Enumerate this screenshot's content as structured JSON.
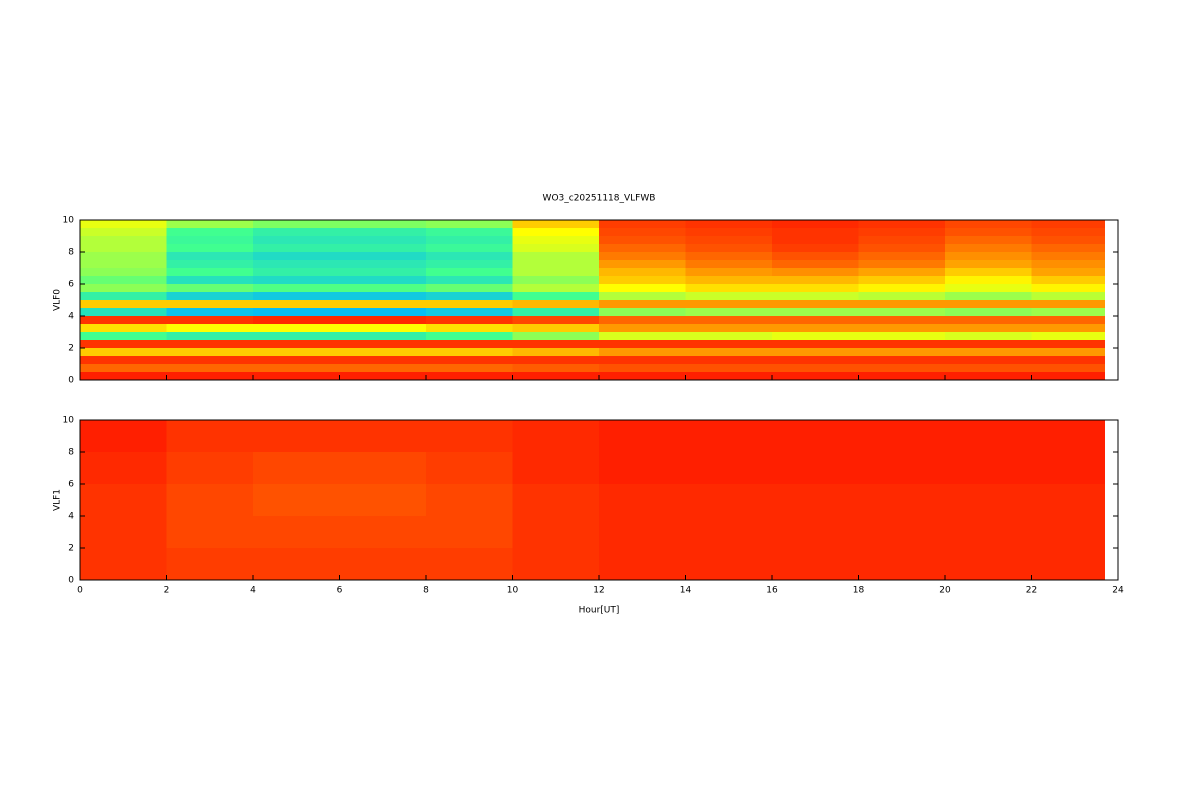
{
  "chart_data": [
    {
      "type": "heatmap",
      "title": "WO3_c20251118_VLFWB",
      "ylabel": "VLF0",
      "x": [
        0,
        2,
        4,
        6,
        8,
        10,
        12,
        14,
        16,
        18,
        20,
        22,
        23.7
      ],
      "y": [
        0,
        0.5,
        1,
        1.5,
        2,
        2.5,
        3,
        3.5,
        4,
        4.5,
        5,
        5.5,
        6,
        6.5,
        7,
        7.5,
        8,
        8.5,
        9,
        9.5,
        10
      ],
      "z": [
        [
          0.97,
          0.97,
          0.97,
          0.97,
          0.97,
          0.97,
          0.97,
          0.97,
          0.97,
          0.97,
          0.97,
          0.97
        ],
        [
          0.9,
          0.9,
          0.9,
          0.9,
          0.9,
          0.91,
          0.92,
          0.92,
          0.92,
          0.92,
          0.92,
          0.92
        ],
        [
          0.95,
          0.95,
          0.95,
          0.95,
          0.95,
          0.95,
          0.95,
          0.95,
          0.95,
          0.95,
          0.95,
          0.95
        ],
        [
          0.8,
          0.8,
          0.8,
          0.8,
          0.8,
          0.82,
          0.85,
          0.85,
          0.85,
          0.85,
          0.85,
          0.85
        ],
        [
          0.95,
          0.95,
          0.95,
          0.95,
          0.95,
          0.95,
          0.95,
          0.95,
          0.95,
          0.95,
          0.95,
          0.95
        ],
        [
          0.5,
          0.45,
          0.45,
          0.45,
          0.5,
          0.6,
          0.7,
          0.7,
          0.72,
          0.72,
          0.7,
          0.72
        ],
        [
          0.78,
          0.75,
          0.75,
          0.75,
          0.78,
          0.8,
          0.85,
          0.85,
          0.85,
          0.85,
          0.85,
          0.85
        ],
        [
          0.95,
          0.95,
          0.96,
          0.96,
          0.95,
          0.93,
          0.9,
          0.9,
          0.9,
          0.9,
          0.9,
          0.9
        ],
        [
          0.4,
          0.3,
          0.28,
          0.28,
          0.32,
          0.45,
          0.6,
          0.62,
          0.62,
          0.62,
          0.6,
          0.62
        ],
        [
          0.8,
          0.8,
          0.8,
          0.8,
          0.8,
          0.82,
          0.85,
          0.85,
          0.85,
          0.85,
          0.85,
          0.85
        ],
        [
          0.45,
          0.35,
          0.32,
          0.32,
          0.35,
          0.5,
          0.65,
          0.68,
          0.68,
          0.66,
          0.62,
          0.66
        ],
        [
          0.6,
          0.55,
          0.52,
          0.52,
          0.55,
          0.65,
          0.75,
          0.78,
          0.78,
          0.76,
          0.72,
          0.76
        ],
        [
          0.55,
          0.4,
          0.38,
          0.38,
          0.42,
          0.6,
          0.8,
          0.82,
          0.82,
          0.8,
          0.76,
          0.8
        ],
        [
          0.6,
          0.5,
          0.45,
          0.45,
          0.5,
          0.65,
          0.82,
          0.85,
          0.86,
          0.84,
          0.8,
          0.84
        ],
        [
          0.62,
          0.45,
          0.42,
          0.42,
          0.45,
          0.65,
          0.85,
          0.88,
          0.9,
          0.88,
          0.84,
          0.86
        ],
        [
          0.62,
          0.42,
          0.38,
          0.38,
          0.42,
          0.65,
          0.88,
          0.9,
          0.92,
          0.9,
          0.86,
          0.88
        ],
        [
          0.65,
          0.5,
          0.45,
          0.45,
          0.48,
          0.7,
          0.9,
          0.92,
          0.94,
          0.92,
          0.88,
          0.9
        ],
        [
          0.65,
          0.48,
          0.42,
          0.42,
          0.45,
          0.72,
          0.92,
          0.93,
          0.95,
          0.93,
          0.9,
          0.92
        ],
        [
          0.68,
          0.5,
          0.45,
          0.45,
          0.48,
          0.75,
          0.93,
          0.94,
          0.95,
          0.94,
          0.92,
          0.93
        ],
        [
          0.72,
          0.62,
          0.58,
          0.58,
          0.6,
          0.8,
          0.94,
          0.95,
          0.96,
          0.95,
          0.93,
          0.94
        ]
      ],
      "zlim": [
        0,
        1
      ],
      "colorscale": [
        "#0000c8",
        "#00b4ff",
        "#40ff90",
        "#ffff00",
        "#ff0000"
      ],
      "xlim": [
        0,
        24
      ],
      "ylim": [
        0,
        10
      ],
      "xticks": [
        0,
        2,
        4,
        6,
        8,
        10,
        12,
        14,
        16,
        18,
        20,
        22,
        24
      ],
      "xtick_labels": false,
      "yticks": [
        0,
        2,
        4,
        6,
        8,
        10
      ]
    },
    {
      "type": "heatmap",
      "ylabel": "VLF1",
      "xlabel": "Hour[UT]",
      "x": [
        0,
        2,
        4,
        6,
        8,
        10,
        12,
        14,
        16,
        18,
        20,
        22,
        23.7
      ],
      "y": [
        0,
        2,
        4,
        6,
        8,
        10
      ],
      "z": [
        [
          0.95,
          0.94,
          0.94,
          0.94,
          0.94,
          0.95,
          0.96,
          0.96,
          0.96,
          0.96,
          0.96,
          0.96
        ],
        [
          0.95,
          0.93,
          0.93,
          0.93,
          0.93,
          0.95,
          0.96,
          0.96,
          0.96,
          0.96,
          0.96,
          0.96
        ],
        [
          0.95,
          0.93,
          0.92,
          0.92,
          0.93,
          0.95,
          0.96,
          0.96,
          0.96,
          0.96,
          0.96,
          0.96
        ],
        [
          0.96,
          0.94,
          0.93,
          0.93,
          0.94,
          0.96,
          0.97,
          0.97,
          0.97,
          0.97,
          0.97,
          0.97
        ],
        [
          0.97,
          0.95,
          0.95,
          0.95,
          0.95,
          0.96,
          0.97,
          0.97,
          0.97,
          0.97,
          0.97,
          0.97
        ]
      ],
      "zlim": [
        0,
        1
      ],
      "colorscale": [
        "#0000c8",
        "#00b4ff",
        "#40ff90",
        "#ffff00",
        "#ff0000"
      ],
      "xlim": [
        0,
        24
      ],
      "ylim": [
        0,
        10
      ],
      "xticks": [
        0,
        2,
        4,
        6,
        8,
        10,
        12,
        14,
        16,
        18,
        20,
        22,
        24
      ],
      "xtick_labels": true,
      "yticks": [
        0,
        2,
        4,
        6,
        8,
        10
      ]
    }
  ]
}
